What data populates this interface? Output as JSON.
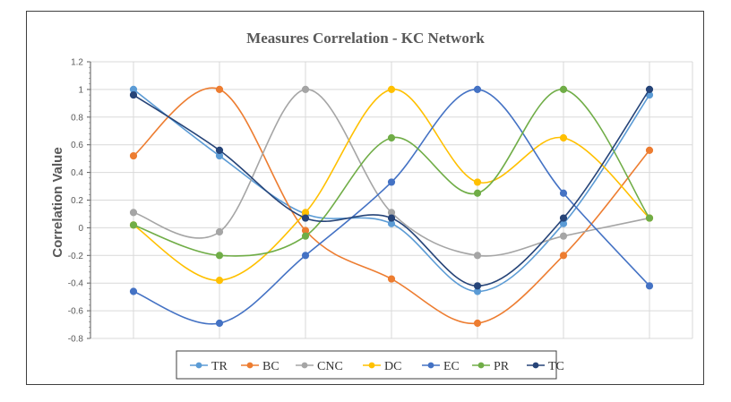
{
  "chart_data": {
    "type": "line",
    "title": "Measures Correlation - KC Network",
    "xlabel": "",
    "ylabel": "Correlation Value",
    "ylim": [
      -0.8,
      1.2
    ],
    "yticks": [
      "1.2",
      "1",
      "0.8",
      "0.6",
      "0.4",
      "0.2",
      "0",
      "-0.2",
      "-0.4",
      "-0.6",
      "-0.8"
    ],
    "ytick_values": [
      1.2,
      1,
      0.8,
      0.6,
      0.4,
      0.2,
      0,
      -0.2,
      -0.4,
      -0.6,
      -0.8
    ],
    "categories": [
      "",
      "",
      "",
      "",
      "",
      "",
      ""
    ],
    "grid": true,
    "smooth": true,
    "legend_position": "bottom",
    "series": [
      {
        "name": "TR",
        "color": "#5B9BD5",
        "values": [
          1.0,
          0.52,
          0.1,
          0.03,
          -0.46,
          0.03,
          0.96
        ]
      },
      {
        "name": "BC",
        "color": "#ED7D31",
        "values": [
          0.52,
          1.0,
          -0.02,
          -0.37,
          -0.69,
          -0.2,
          0.56
        ]
      },
      {
        "name": "CNC",
        "color": "#A5A5A5",
        "values": [
          0.11,
          -0.03,
          1.0,
          0.11,
          -0.2,
          -0.06,
          0.07
        ]
      },
      {
        "name": "DC",
        "color": "#FFC000",
        "values": [
          0.02,
          -0.38,
          0.11,
          1.0,
          0.33,
          0.65,
          0.07
        ]
      },
      {
        "name": "EC",
        "color": "#4472C4",
        "values": [
          -0.46,
          -0.69,
          -0.2,
          0.33,
          1.0,
          0.25,
          -0.42
        ]
      },
      {
        "name": "PR",
        "color": "#70AD47",
        "values": [
          0.02,
          -0.2,
          -0.06,
          0.65,
          0.25,
          1.0,
          0.07
        ]
      },
      {
        "name": "TC",
        "color": "#264478",
        "values": [
          0.96,
          0.56,
          0.07,
          0.07,
          -0.42,
          0.07,
          1.0
        ]
      }
    ]
  }
}
